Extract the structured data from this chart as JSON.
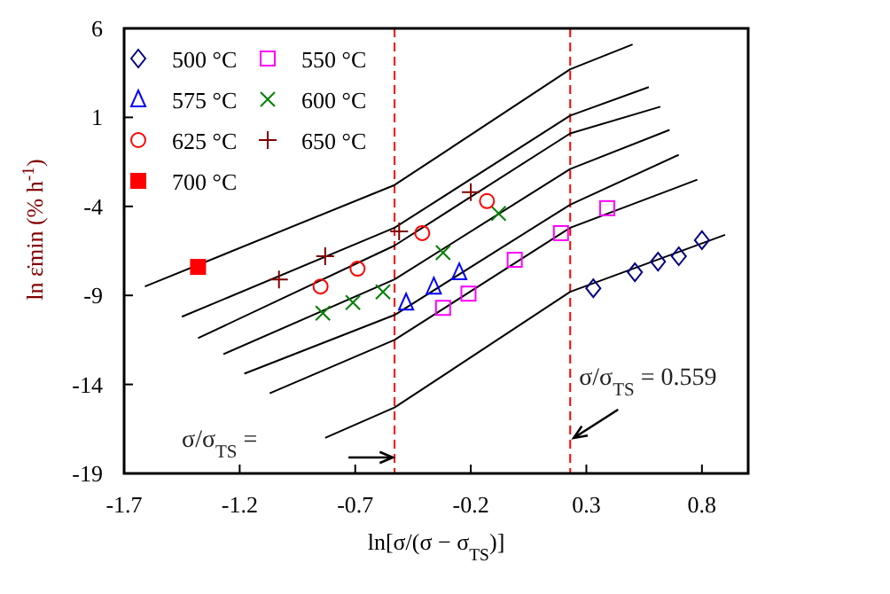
{
  "chart_data": {
    "type": "scatter",
    "xlabel": "ln[σ/(σ − σ$_{TS}$)]",
    "ylabel": "ln ε̇min (% h$^{-1}$)",
    "xlim": [
      -1.7,
      1.0
    ],
    "xticks": [
      -1.7,
      -1.2,
      -0.7,
      -0.2,
      0.3,
      0.8
    ],
    "ylim": [
      -19,
      6
    ],
    "yticks": [
      -19,
      -14,
      -9,
      -4,
      1,
      6
    ],
    "grid": false,
    "legend": "top left",
    "series": [
      {
        "name": "500 °C",
        "color": "#000080",
        "marker": "diamond",
        "x": [
          0.33,
          0.51,
          0.61,
          0.7,
          0.8
        ],
        "values": [
          -8.6,
          -7.7,
          -7.1,
          -6.8,
          -5.9
        ]
      },
      {
        "name": "550 °C",
        "color": "#ff00ff",
        "marker": "square",
        "x": [
          -0.32,
          -0.21,
          -0.01,
          0.19,
          0.39
        ],
        "values": [
          -9.7,
          -8.9,
          -7.0,
          -5.5,
          -4.1
        ]
      },
      {
        "name": "575 °C",
        "color": "#0000ff",
        "marker": "triangle",
        "x": [
          -0.48,
          -0.36,
          -0.25
        ],
        "values": [
          -9.4,
          -8.5,
          -7.7
        ]
      },
      {
        "name": "600 °C",
        "color": "#008000",
        "marker": "x",
        "x": [
          -0.84,
          -0.71,
          -0.58,
          -0.32,
          -0.08
        ],
        "values": [
          -10.0,
          -9.4,
          -8.8,
          -6.6,
          -4.4
        ]
      },
      {
        "name": "625 °C",
        "color": "#ff0000",
        "marker": "circle",
        "x": [
          -0.85,
          -0.69,
          -0.41,
          -0.13
        ],
        "values": [
          -8.5,
          -7.5,
          -5.5,
          -3.7
        ]
      },
      {
        "name": "650 °C",
        "color": "#800000",
        "marker": "cross",
        "x": [
          -1.03,
          -0.83,
          -0.51,
          -0.2
        ],
        "values": [
          -8.1,
          -6.8,
          -5.4,
          -3.2
        ]
      },
      {
        "name": "700 °C",
        "color": "#ff0000",
        "marker": "square-filled",
        "x": [
          -1.38
        ],
        "values": [
          -7.4
        ]
      },
      {
        "type": "line",
        "color": "#000000",
        "x": [
          -1.61,
          -0.53,
          0.23,
          0.5
        ],
        "values": [
          -8.5,
          -2.8,
          3.7,
          5.1
        ]
      },
      {
        "type": "line",
        "color": "#000000",
        "x": [
          -1.45,
          -0.53,
          0.23,
          0.57
        ],
        "values": [
          -10.2,
          -5.2,
          1.1,
          2.7
        ]
      },
      {
        "type": "line",
        "color": "#000000",
        "x": [
          -1.38,
          -0.53,
          0.23,
          0.62
        ],
        "values": [
          -11.4,
          -6.2,
          0.1,
          1.6
        ]
      },
      {
        "type": "line",
        "color": "#000000",
        "x": [
          -1.27,
          -0.53,
          0.23,
          0.66
        ],
        "values": [
          -12.3,
          -8.1,
          -1.9,
          0.3
        ]
      },
      {
        "type": "line",
        "color": "#000000",
        "x": [
          -1.18,
          -0.53,
          0.23,
          0.7
        ],
        "values": [
          -13.4,
          -10.1,
          -3.9,
          -1.1
        ]
      },
      {
        "type": "line",
        "color": "#000000",
        "x": [
          -1.07,
          -0.53,
          0.23,
          0.78
        ],
        "values": [
          -14.5,
          -11.5,
          -5.2,
          -2.5
        ]
      },
      {
        "type": "line",
        "color": "#000000",
        "x": [
          -0.83,
          -0.53,
          0.23,
          0.9
        ],
        "values": [
          -17.0,
          -15.3,
          -8.8,
          -5.6
        ]
      }
    ],
    "ref_lines": [
      {
        "axis": "x",
        "value": -0.53,
        "color": "#ff0000",
        "line_style": "dashed"
      },
      {
        "axis": "x",
        "value": 0.23,
        "color": "#ff0000",
        "line_style": "dashed"
      }
    ],
    "annotations": [
      "σ/σ$_{TS}$ =",
      "σ/σ$_{TS}$ = 0.559"
    ]
  }
}
